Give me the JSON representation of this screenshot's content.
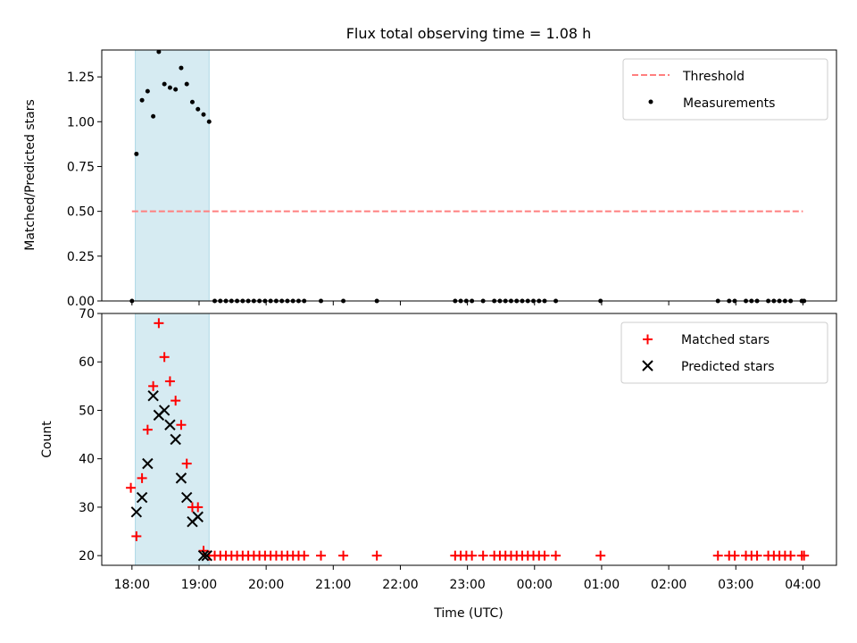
{
  "figure": {
    "title": "Flux total observing time = 1.08 h"
  },
  "chart_data": [
    {
      "type": "scatter",
      "panel": "top",
      "ylabel": "Matched/Predicted stars",
      "xlabel": "",
      "xlim": [
        "17:33",
        "04:30"
      ],
      "ylim": [
        0,
        1.4
      ],
      "yticks": [
        0.0,
        0.25,
        0.5,
        0.75,
        1.0,
        1.25
      ],
      "ytick_labels": [
        "0.00",
        "0.25",
        "0.50",
        "0.75",
        "1.00",
        "1.25"
      ],
      "shaded_span": [
        "18:03",
        "19:09"
      ],
      "threshold": {
        "name": "Threshold",
        "y": 0.5,
        "x": [
          "18:00",
          "04:00"
        ],
        "color": "#ff7f7f"
      },
      "series": [
        {
          "name": "Measurements",
          "color": "#000000",
          "marker": "dot",
          "x": [
            "18:00",
            "18:04",
            "18:09",
            "18:14",
            "18:19",
            "18:24",
            "18:29",
            "18:34",
            "18:39",
            "18:44",
            "18:49",
            "18:54",
            "18:59",
            "19:04",
            "19:09",
            "19:14",
            "19:19",
            "19:24",
            "19:29",
            "19:34",
            "19:39",
            "19:44",
            "19:49",
            "19:54",
            "19:59",
            "20:04",
            "20:09",
            "20:14",
            "20:19",
            "20:24",
            "20:29",
            "20:34",
            "20:49",
            "21:09",
            "21:39",
            "22:49",
            "22:54",
            "22:59",
            "23:04",
            "23:14",
            "23:24",
            "23:29",
            "23:34",
            "23:39",
            "23:44",
            "23:49",
            "23:54",
            "23:59",
            "00:04",
            "00:09",
            "00:19",
            "00:59",
            "02:44",
            "02:54",
            "02:59",
            "03:09",
            "03:14",
            "03:19",
            "03:29",
            "03:34",
            "03:39",
            "03:44",
            "03:49",
            "03:59",
            "04:01"
          ],
          "y": [
            0,
            0.82,
            1.12,
            1.17,
            1.03,
            1.39,
            1.21,
            1.19,
            1.18,
            1.3,
            1.21,
            1.11,
            1.07,
            1.04,
            1.0,
            0,
            0,
            0,
            0,
            0,
            0,
            0,
            0,
            0,
            0,
            0,
            0,
            0,
            0,
            0,
            0,
            0,
            0,
            0,
            0,
            0,
            0,
            0,
            0,
            0,
            0,
            0,
            0,
            0,
            0,
            0,
            0,
            0,
            0,
            0,
            0,
            0,
            0,
            0,
            0,
            0,
            0,
            0,
            0,
            0,
            0,
            0,
            0,
            0,
            0
          ]
        }
      ],
      "legend": {
        "position": "upper-right",
        "entries": [
          "Threshold",
          "Measurements"
        ]
      }
    },
    {
      "type": "scatter",
      "panel": "bottom",
      "ylabel": "Count",
      "xlabel": "Time (UTC)",
      "xlim": [
        "17:33",
        "04:30"
      ],
      "ylim": [
        18,
        70
      ],
      "yticks": [
        20,
        30,
        40,
        50,
        60,
        70
      ],
      "ytick_labels": [
        "20",
        "30",
        "40",
        "50",
        "60",
        "70"
      ],
      "xticks": [
        "18:00",
        "19:00",
        "20:00",
        "21:00",
        "22:00",
        "23:00",
        "00:00",
        "01:00",
        "02:00",
        "03:00",
        "04:00"
      ],
      "xtick_labels": [
        "18:00",
        "19:00",
        "20:00",
        "21:00",
        "22:00",
        "23:00",
        "00:00",
        "01:00",
        "02:00",
        "03:00",
        "04:00"
      ],
      "shaded_span": [
        "18:03",
        "19:09"
      ],
      "series": [
        {
          "name": "Matched stars",
          "color": "#ff0000",
          "marker": "plus",
          "x": [
            "17:59",
            "18:04",
            "18:09",
            "18:14",
            "18:19",
            "18:24",
            "18:29",
            "18:34",
            "18:39",
            "18:44",
            "18:49",
            "18:54",
            "18:59",
            "19:04",
            "19:09",
            "19:14",
            "19:19",
            "19:24",
            "19:29",
            "19:34",
            "19:39",
            "19:44",
            "19:49",
            "19:54",
            "19:59",
            "20:04",
            "20:09",
            "20:14",
            "20:19",
            "20:24",
            "20:29",
            "20:34",
            "20:49",
            "21:09",
            "21:39",
            "22:49",
            "22:54",
            "22:59",
            "23:04",
            "23:14",
            "23:24",
            "23:29",
            "23:34",
            "23:39",
            "23:44",
            "23:49",
            "23:54",
            "23:59",
            "00:04",
            "00:09",
            "00:19",
            "00:59",
            "02:44",
            "02:54",
            "02:59",
            "03:09",
            "03:14",
            "03:19",
            "03:29",
            "03:34",
            "03:39",
            "03:44",
            "03:49",
            "03:59",
            "04:01"
          ],
          "y": [
            34,
            24,
            36,
            46,
            55,
            68,
            61,
            56,
            52,
            47,
            39,
            30,
            30,
            21,
            20,
            20,
            20,
            20,
            20,
            20,
            20,
            20,
            20,
            20,
            20,
            20,
            20,
            20,
            20,
            20,
            20,
            20,
            20,
            20,
            20,
            20,
            20,
            20,
            20,
            20,
            20,
            20,
            20,
            20,
            20,
            20,
            20,
            20,
            20,
            20,
            20,
            20,
            20,
            20,
            20,
            20,
            20,
            20,
            20,
            20,
            20,
            20,
            20,
            20,
            20
          ]
        },
        {
          "name": "Predicted stars",
          "color": "#000000",
          "marker": "x",
          "x": [
            "18:04",
            "18:09",
            "18:14",
            "18:19",
            "18:24",
            "18:29",
            "18:34",
            "18:39",
            "18:44",
            "18:49",
            "18:54",
            "18:59",
            "19:04",
            "19:07"
          ],
          "y": [
            29,
            32,
            39,
            53,
            49,
            50,
            47,
            44,
            36,
            32,
            27,
            28,
            20,
            20
          ]
        }
      ],
      "legend": {
        "position": "upper-right",
        "entries": [
          "Matched stars",
          "Predicted stars"
        ]
      }
    }
  ]
}
